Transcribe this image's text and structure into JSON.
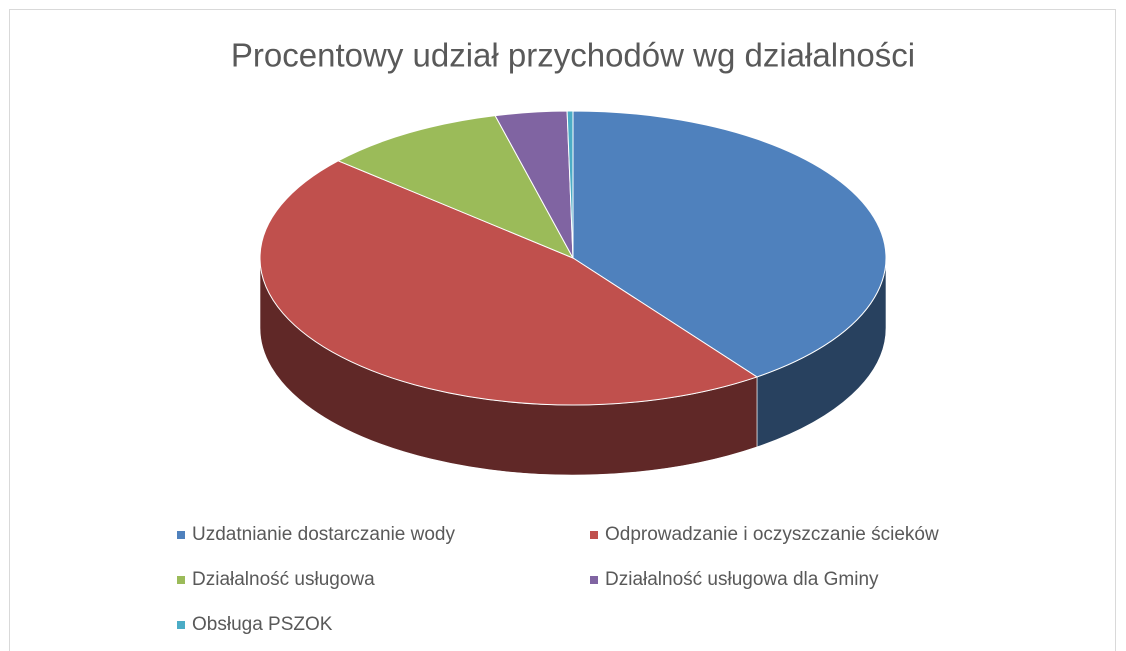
{
  "chart_data": {
    "type": "pie3d",
    "title": "Procentowy udział przychodów wg działalności",
    "categories": [
      "Uzdatnianie dostarczanie wody",
      "Odprowadzanie i oczyszczanie ścieków",
      "Działalność usługowa",
      "Działalność usługowa dla Gminy",
      "Obsługa PSZOK"
    ],
    "values": [
      40,
      46.5,
      9.5,
      3.7,
      0.3
    ],
    "colors": [
      "#4f81bd",
      "#c0504d",
      "#9bbb59",
      "#8064a2",
      "#4bacc6"
    ],
    "legend": "bottom"
  }
}
